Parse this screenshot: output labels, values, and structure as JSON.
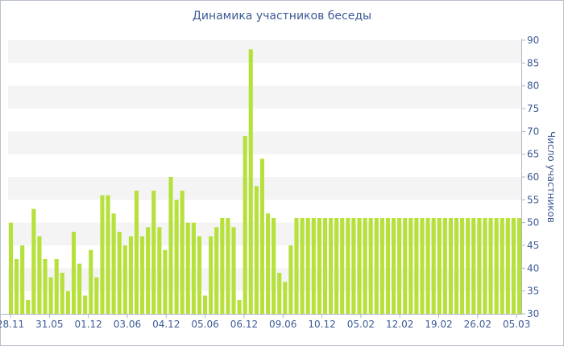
{
  "chart_data": {
    "type": "bar",
    "title": "Динамика участников беседы",
    "ylabel": "Число участников",
    "xlabel": "",
    "ylim": [
      30,
      90
    ],
    "y_ticks": [
      90,
      85,
      80,
      75,
      70,
      65,
      60,
      55,
      50,
      45,
      40,
      35,
      30
    ],
    "x_ticks": [
      "28.11",
      "31.05",
      "01.12",
      "03.06",
      "04.12",
      "05.06",
      "06.12",
      "09.06",
      "10.12",
      "05.02",
      "12.02",
      "19.02",
      "26.02",
      "05.03"
    ],
    "grid": "horizontal alternating bands",
    "legend": "none",
    "bar_color": "#b6e03a",
    "values": [
      50,
      42,
      45,
      33,
      53,
      47,
      42,
      38,
      42,
      39,
      35,
      48,
      41,
      34,
      44,
      38,
      56,
      56,
      52,
      48,
      45,
      47,
      57,
      47,
      49,
      57,
      49,
      44,
      60,
      55,
      57,
      50,
      50,
      47,
      34,
      47,
      49,
      51,
      51,
      49,
      33,
      69,
      88,
      58,
      64,
      52,
      51,
      39,
      37,
      45,
      51,
      51,
      51,
      51,
      51,
      51,
      51,
      51,
      51,
      51,
      51,
      51,
      51,
      51,
      51,
      51,
      51,
      51,
      51,
      51,
      51,
      51,
      51,
      51,
      51,
      51,
      51,
      51,
      51,
      51,
      51,
      51,
      51,
      51,
      51,
      51,
      51,
      51,
      51,
      51
    ]
  }
}
